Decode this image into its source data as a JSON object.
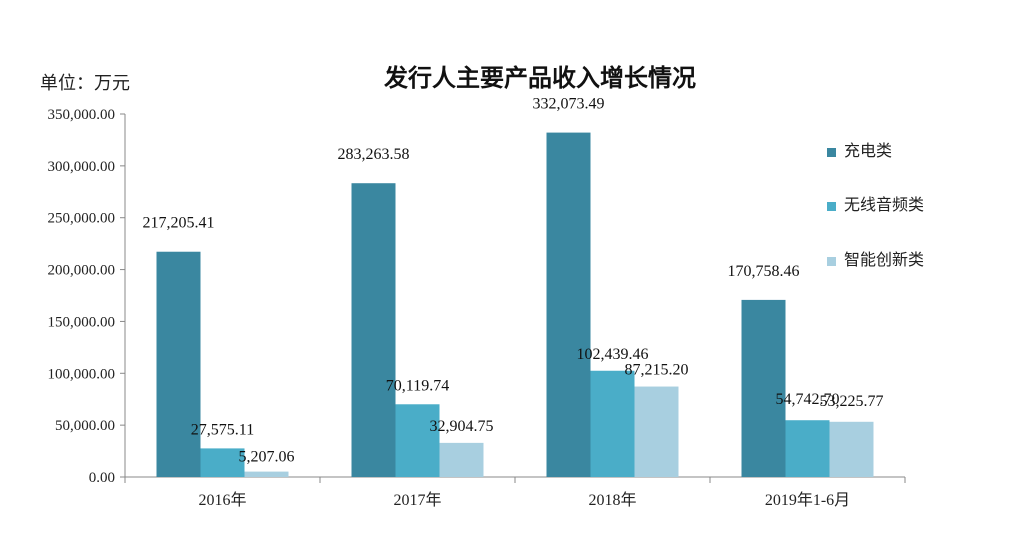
{
  "chart_data": {
    "type": "bar",
    "title": "发行人主要产品收入增长情况",
    "unit_label": "单位：万元",
    "categories": [
      "2016年",
      "2017年",
      "2018年",
      "2019年1-6月"
    ],
    "series": [
      {
        "name": "充电类",
        "color": "#3a87a0",
        "values": [
          217205.41,
          283263.58,
          332073.49,
          170758.46
        ],
        "labels": [
          "217,205.41",
          "283,263.58",
          "332,073.49",
          "170,758.46"
        ]
      },
      {
        "name": "无线音频类",
        "color": "#4aadc8",
        "values": [
          27575.11,
          70119.74,
          102439.46,
          54742.7
        ],
        "labels": [
          "27,575.11",
          "70,119.74",
          "102,439.46",
          "54,742.70"
        ]
      },
      {
        "name": "智能创新类",
        "color": "#a8cfe0",
        "values": [
          5207.06,
          32904.75,
          87215.2,
          53225.77
        ],
        "labels": [
          "5,207.06",
          "32,904.75",
          "87,215.20",
          "53,225.77"
        ]
      }
    ],
    "ylim": [
      0,
      350000
    ],
    "yticks": [
      "0.00",
      "50,000.00",
      "100,000.00",
      "150,000.00",
      "200,000.00",
      "250,000.00",
      "300,000.00",
      "350,000.00"
    ],
    "legend_position": "right",
    "grid": false
  }
}
